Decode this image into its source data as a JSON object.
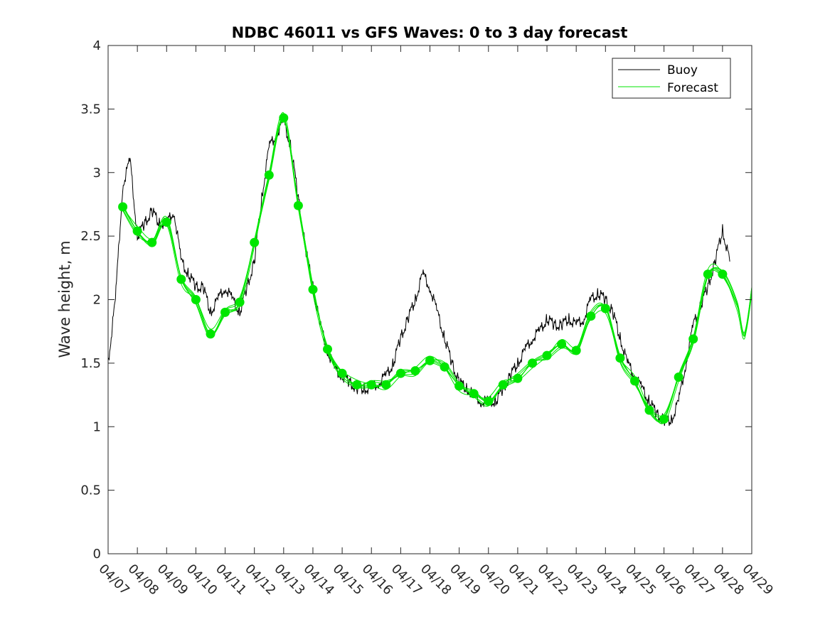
{
  "chart_data": {
    "type": "line",
    "title": "NDBC 46011 vs GFS Waves: 0 to 3 day forecast",
    "xlabel": "",
    "ylabel": "Wave height, m",
    "ylim": [
      0,
      4
    ],
    "yticks": [
      "0",
      "0.5",
      "1",
      "1.5",
      "2",
      "2.5",
      "3",
      "3.5",
      "4"
    ],
    "xlim": [
      "2023-04-07",
      "2023-04-29"
    ],
    "xticks": [
      "04/07",
      "04/08",
      "04/09",
      "04/10",
      "04/11",
      "04/12",
      "04/13",
      "04/14",
      "04/15",
      "04/16",
      "04/17",
      "04/18",
      "04/19",
      "04/20",
      "04/21",
      "04/22",
      "04/23",
      "04/24",
      "04/25",
      "04/26",
      "04/27",
      "04/28",
      "04/29"
    ],
    "grid": false,
    "legend": {
      "position": "top-right",
      "entries": [
        "Buoy",
        "Forecast"
      ]
    },
    "series": [
      {
        "name": "Buoy",
        "color": "#000000",
        "x": [
          "04/07 00:00",
          "04/07 06:00",
          "04/07 12:00",
          "04/07 18:00",
          "04/08 00:00",
          "04/08 06:00",
          "04/08 12:00",
          "04/08 18:00",
          "04/09 00:00",
          "04/09 06:00",
          "04/09 12:00",
          "04/09 18:00",
          "04/10 00:00",
          "04/10 06:00",
          "04/10 12:00",
          "04/10 18:00",
          "04/11 00:00",
          "04/11 06:00",
          "04/11 12:00",
          "04/11 18:00",
          "04/12 00:00",
          "04/12 06:00",
          "04/12 12:00",
          "04/12 18:00",
          "04/13 00:00",
          "04/13 06:00",
          "04/13 12:00",
          "04/13 18:00",
          "04/14 00:00",
          "04/14 06:00",
          "04/14 12:00",
          "04/14 18:00",
          "04/15 00:00",
          "04/15 06:00",
          "04/15 12:00",
          "04/15 18:00",
          "04/16 00:00",
          "04/16 06:00",
          "04/16 12:00",
          "04/16 18:00",
          "04/17 00:00",
          "04/17 06:00",
          "04/17 12:00",
          "04/17 18:00",
          "04/18 00:00",
          "04/18 06:00",
          "04/18 12:00",
          "04/18 18:00",
          "04/19 00:00",
          "04/19 06:00",
          "04/19 12:00",
          "04/19 18:00",
          "04/20 00:00",
          "04/20 06:00",
          "04/20 12:00",
          "04/20 18:00",
          "04/21 00:00",
          "04/21 06:00",
          "04/21 12:00",
          "04/21 18:00",
          "04/22 00:00",
          "04/22 06:00",
          "04/22 12:00",
          "04/22 18:00",
          "04/23 00:00",
          "04/23 06:00",
          "04/23 12:00",
          "04/23 18:00",
          "04/24 00:00",
          "04/24 06:00",
          "04/24 12:00",
          "04/24 18:00",
          "04/25 00:00",
          "04/25 06:00",
          "04/25 12:00",
          "04/25 18:00",
          "04/26 00:00",
          "04/26 06:00",
          "04/26 12:00",
          "04/26 18:00",
          "04/27 00:00",
          "04/27 06:00",
          "04/27 12:00",
          "04/27 18:00",
          "04/28 00:00",
          "04/28 06:00"
        ],
        "values": [
          1.5,
          2.0,
          2.9,
          3.1,
          2.5,
          2.6,
          2.7,
          2.6,
          2.6,
          2.7,
          2.3,
          2.2,
          2.1,
          2.1,
          1.9,
          2.0,
          2.1,
          2.0,
          1.9,
          2.1,
          2.3,
          2.8,
          3.2,
          3.3,
          3.4,
          3.2,
          2.8,
          2.4,
          2.1,
          1.8,
          1.6,
          1.45,
          1.4,
          1.35,
          1.3,
          1.3,
          1.3,
          1.35,
          1.4,
          1.5,
          1.7,
          1.85,
          2.0,
          2.2,
          2.1,
          1.9,
          1.7,
          1.5,
          1.35,
          1.3,
          1.25,
          1.2,
          1.2,
          1.2,
          1.3,
          1.4,
          1.5,
          1.6,
          1.7,
          1.75,
          1.85,
          1.8,
          1.8,
          1.85,
          1.8,
          1.85,
          2.0,
          2.05,
          2.0,
          1.9,
          1.7,
          1.5,
          1.4,
          1.3,
          1.2,
          1.1,
          1.05,
          1.05,
          1.2,
          1.5,
          1.8,
          1.95,
          2.1,
          2.3,
          2.55,
          2.3
        ]
      },
      {
        "name": "Forecast",
        "color": "#00e600",
        "x": [
          "04/07 12:00",
          "04/08 00:00",
          "04/08 12:00",
          "04/09 00:00",
          "04/09 12:00",
          "04/10 00:00",
          "04/10 12:00",
          "04/11 00:00",
          "04/11 12:00",
          "04/12 00:00",
          "04/12 12:00",
          "04/13 00:00",
          "04/13 12:00",
          "04/14 00:00",
          "04/14 12:00",
          "04/15 00:00",
          "04/15 12:00",
          "04/16 00:00",
          "04/16 12:00",
          "04/17 00:00",
          "04/17 12:00",
          "04/18 00:00",
          "04/18 12:00",
          "04/19 00:00",
          "04/19 12:00",
          "04/20 00:00",
          "04/20 12:00",
          "04/21 00:00",
          "04/21 12:00",
          "04/22 00:00",
          "04/22 12:00",
          "04/23 00:00",
          "04/23 12:00",
          "04/24 00:00",
          "04/24 12:00",
          "04/25 00:00",
          "04/25 12:00",
          "04/26 00:00",
          "04/26 12:00",
          "04/27 00:00",
          "04/27 12:00",
          "04/28 00:00"
        ],
        "values": [
          2.73,
          2.54,
          2.45,
          2.61,
          2.16,
          2.0,
          1.73,
          1.9,
          1.98,
          2.45,
          2.98,
          3.43,
          2.74,
          2.08,
          1.61,
          1.42,
          1.33,
          1.33,
          1.33,
          1.42,
          1.44,
          1.52,
          1.47,
          1.32,
          1.26,
          1.2,
          1.33,
          1.38,
          1.5,
          1.56,
          1.65,
          1.6,
          1.87,
          1.93,
          1.54,
          1.36,
          1.13,
          1.06,
          1.39,
          1.69,
          2.2,
          2.2
        ]
      }
    ]
  }
}
